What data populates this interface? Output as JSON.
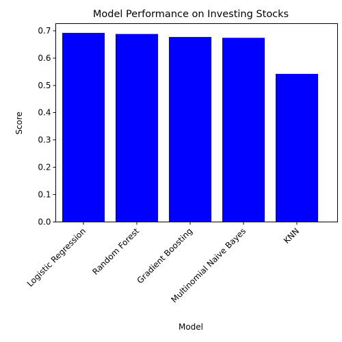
{
  "chart_data": {
    "type": "bar",
    "title": "Model Performance on Investing Stocks",
    "xlabel": "Model",
    "ylabel": "Score",
    "categories": [
      "Logistic Regression",
      "Random Forest",
      "Gradient Boosting",
      "Multinomial Naive Bayes",
      "KNN"
    ],
    "values": [
      0.692,
      0.688,
      0.677,
      0.674,
      0.542
    ],
    "ylim": [
      0,
      0.726
    ],
    "yticks": [
      0.0,
      0.1,
      0.2,
      0.3,
      0.4,
      0.5,
      0.6,
      0.7
    ],
    "ytick_labels": [
      "0.0",
      "0.1",
      "0.2",
      "0.3",
      "0.4",
      "0.5",
      "0.6",
      "0.7"
    ],
    "bar_color": "#0000ff",
    "grid": false,
    "legend": "none",
    "x_tick_rotation_deg": 45
  }
}
